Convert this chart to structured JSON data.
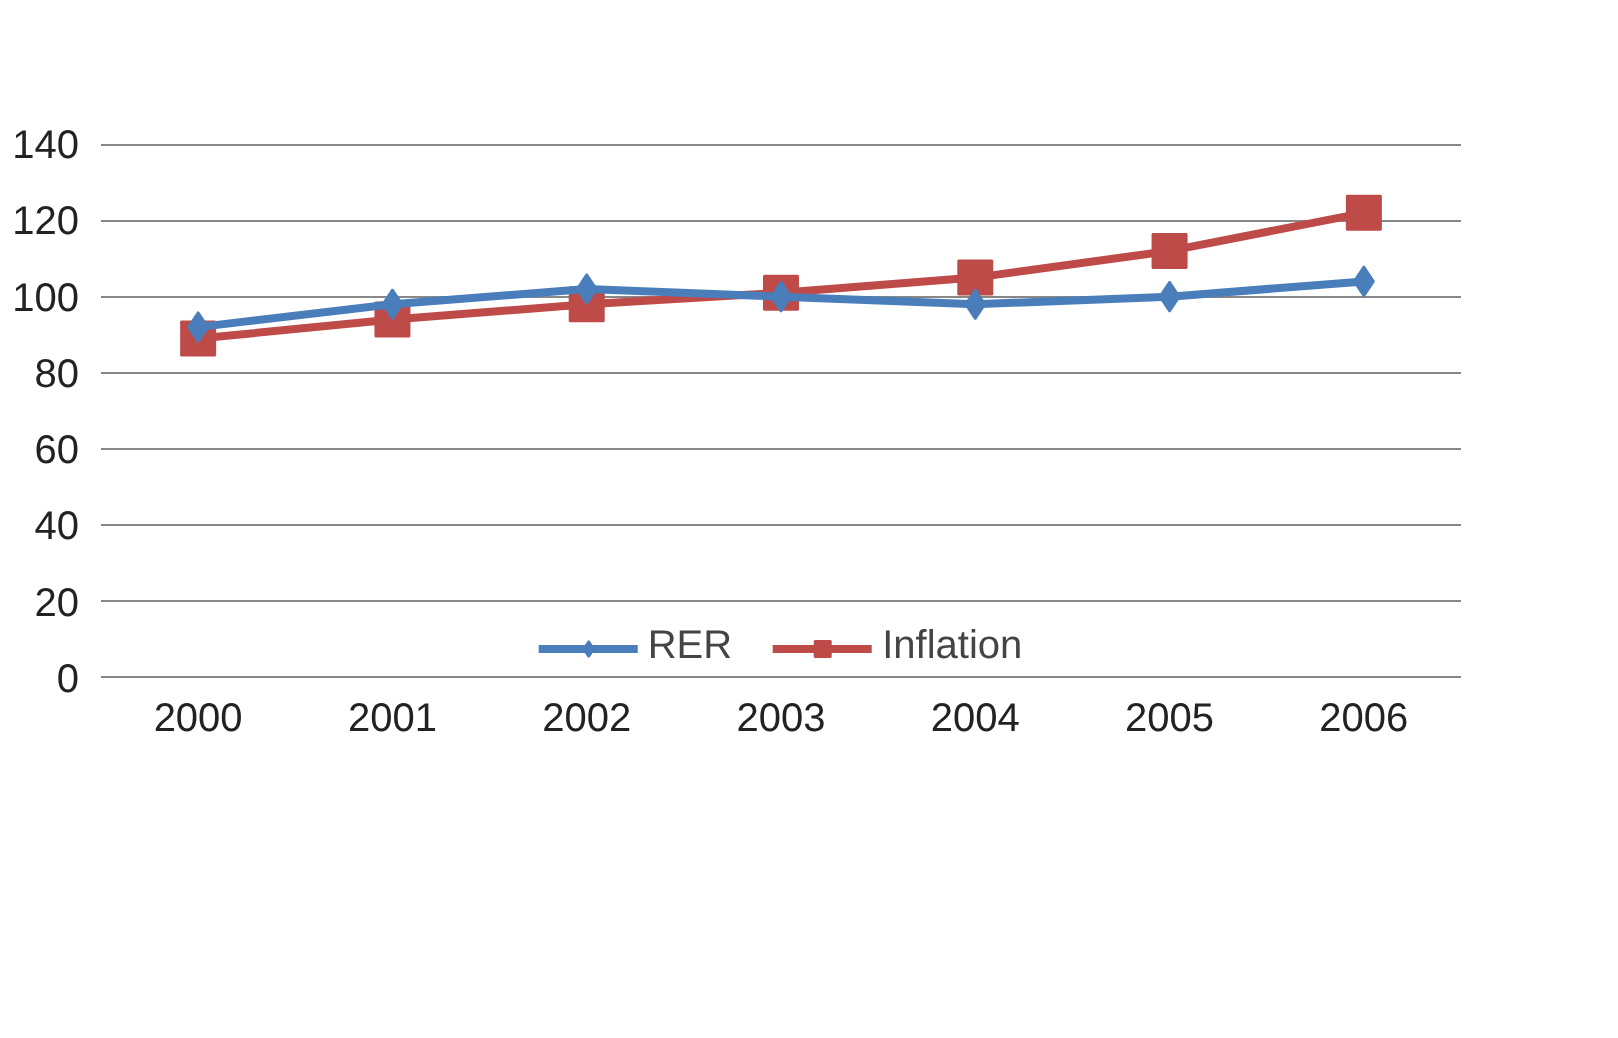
{
  "chart_data": {
    "type": "line",
    "categories": [
      "2000",
      "2001",
      "2002",
      "2003",
      "2004",
      "2005",
      "2006"
    ],
    "series": [
      {
        "name": "RER",
        "color": "#4a7ebb",
        "marker": "diamond",
        "values": [
          92,
          98,
          102,
          100,
          98,
          100,
          104
        ]
      },
      {
        "name": "Inflation",
        "color": "#be4b48",
        "marker": "square",
        "values": [
          89,
          94,
          98,
          101,
          105,
          112,
          122
        ]
      }
    ],
    "ylim": [
      0,
      140
    ],
    "yticks": [
      0,
      20,
      40,
      60,
      80,
      100,
      120,
      140
    ],
    "grid": "y",
    "legend": "bottom"
  }
}
